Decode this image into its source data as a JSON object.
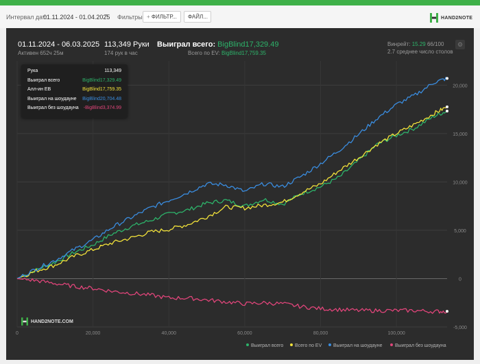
{
  "filterbar": {
    "interval_label": "Интервал дат:",
    "date_range": "01.11.2024 - 01.04.2025",
    "filters_label": "Фильтры:",
    "filter_button": "ФИЛЬТР...",
    "file_button": "ФАЙЛ...",
    "logo_text": "HAND2NOTE"
  },
  "header": {
    "period": "01.11.2024 - 06.03.2025",
    "active": "Активен 652ч 25м",
    "hands": "113,349 Руки",
    "hands_per_hour": "174 рук в час",
    "won_total_label": "Выиграл всего:",
    "won_total_value": "BigBlind17,329.49",
    "ev_total_label": "Всего по EV:",
    "ev_total_value": "BigBlind17,759.35",
    "winrate_label": "Винрейт:",
    "winrate_value": "15.29",
    "winrate_extra": "66/100",
    "avg_tables": "2.7 среднее число столов"
  },
  "tooltip": {
    "rows": [
      {
        "label": "Рука",
        "value": "113,349",
        "color": "#ffffff"
      },
      {
        "label": "Выиграл всего",
        "value": "BigBlind17,329.49",
        "color": "#2db36a"
      },
      {
        "label": "Алл-ин EB",
        "value": "BigBlind17,759.35",
        "color": "#f2e23a"
      },
      {
        "label": "Выиграл на шоудауне",
        "value": "BigBlind20,704.48",
        "color": "#3a8de0"
      },
      {
        "label": "Выиграл без шоудауна",
        "value": "-BigBlind3,374.99",
        "color": "#e0457a"
      }
    ]
  },
  "watermark": "HAND2NOTE.COM",
  "chart_data": {
    "type": "line",
    "xlabel": "",
    "ylabel": "",
    "xlim": [
      0,
      113349
    ],
    "ylim": [
      -5000,
      22500
    ],
    "x_ticks": [
      0,
      20000,
      40000,
      60000,
      80000,
      100000
    ],
    "x_tick_labels": [
      "0",
      "20,000",
      "40,000",
      "60,000",
      "80,000",
      "100,000"
    ],
    "y_ticks": [
      -5000,
      0,
      5000,
      10000,
      15000,
      20000
    ],
    "y_tick_labels": [
      "-5,000",
      "0",
      "5,000",
      "10,000",
      "15,000",
      "20,000"
    ],
    "grid": true,
    "legend_position": "bottom-right",
    "x": [
      0,
      5000,
      10000,
      15000,
      20000,
      25000,
      30000,
      35000,
      40000,
      45000,
      50000,
      55000,
      60000,
      65000,
      70000,
      75000,
      80000,
      85000,
      90000,
      95000,
      100000,
      105000,
      110000,
      113349
    ],
    "series": [
      {
        "name": "Выиграл всего",
        "color": "#2db36a",
        "values": [
          0,
          900,
          1700,
          2700,
          3500,
          4600,
          5400,
          6000,
          6700,
          7100,
          7800,
          8100,
          7500,
          8200,
          7700,
          8800,
          9500,
          10500,
          12200,
          13900,
          14800,
          15600,
          16800,
          17329
        ]
      },
      {
        "name": "Всего по EV",
        "color": "#f2e23a",
        "values": [
          0,
          800,
          1400,
          2300,
          3000,
          3700,
          4200,
          4800,
          5100,
          5600,
          6400,
          7400,
          7300,
          7600,
          7900,
          8900,
          9800,
          11200,
          12500,
          13900,
          15000,
          16000,
          17100,
          17759
        ]
      },
      {
        "name": "Выиграл на шоудауне",
        "color": "#3a8de0",
        "values": [
          0,
          1000,
          1900,
          3000,
          4000,
          5300,
          6300,
          7300,
          8100,
          8900,
          9800,
          9700,
          9000,
          9800,
          9500,
          10600,
          11900,
          13300,
          14900,
          16600,
          18000,
          19000,
          20300,
          20704
        ]
      },
      {
        "name": "Выиграл без шоудауна",
        "color": "#e0457a",
        "values": [
          0,
          -200,
          -500,
          -800,
          -1000,
          -1300,
          -1500,
          -1700,
          -2000,
          -2000,
          -2200,
          -2400,
          -2600,
          -2500,
          -2600,
          -2900,
          -3100,
          -3200,
          -3300,
          -3300,
          -3300,
          -3300,
          -3400,
          -3375
        ]
      }
    ]
  }
}
